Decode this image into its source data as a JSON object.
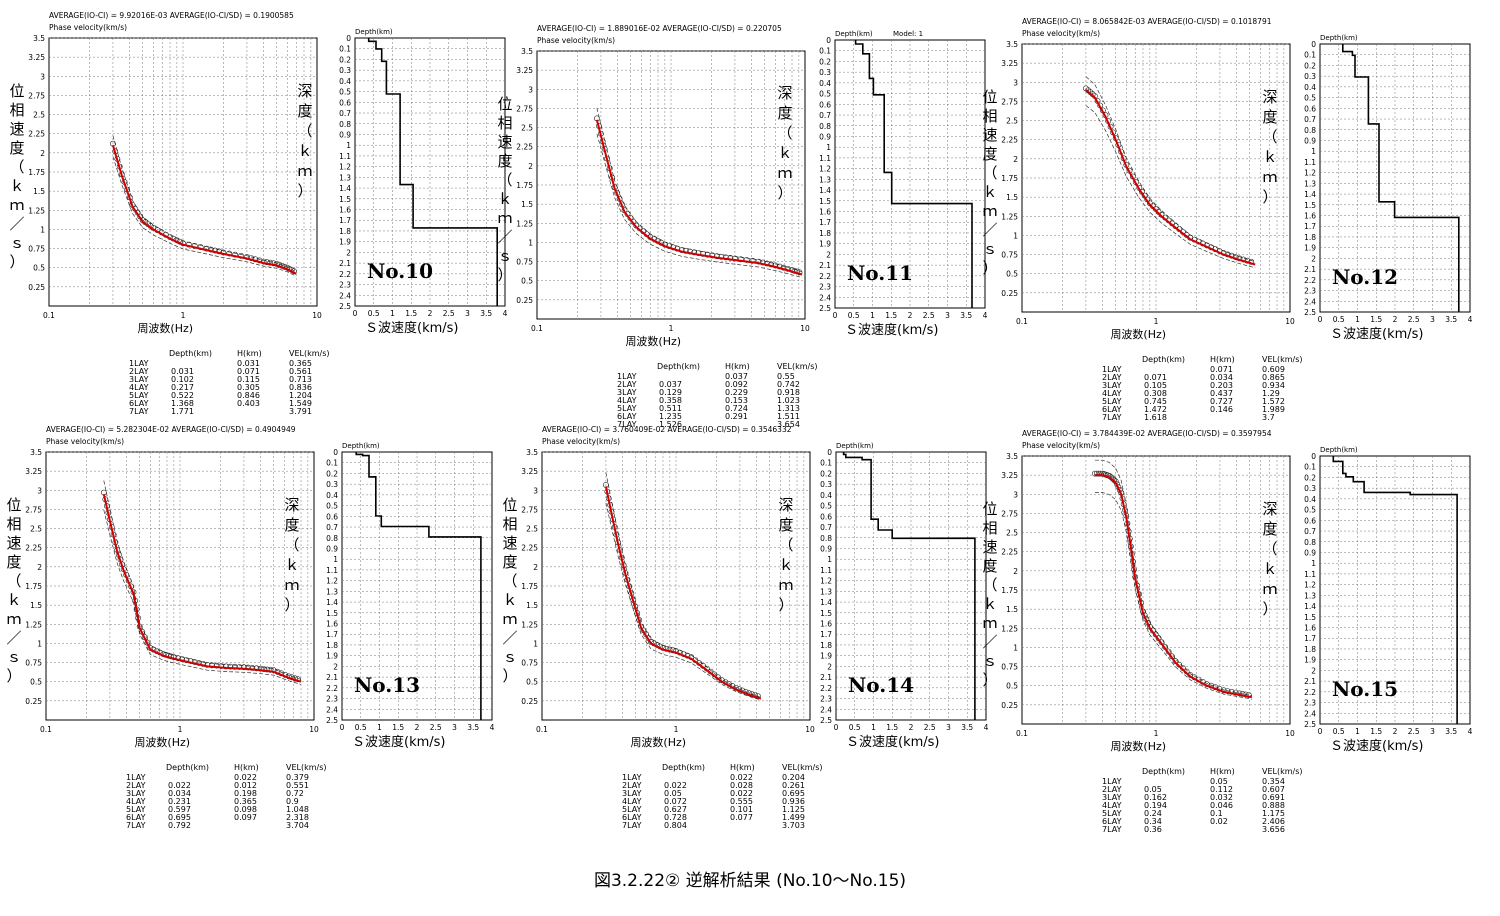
{
  "caption": "図3.2.22② 逆解析結果 (No.10〜No.15)",
  "labels": {
    "phase_velocity": "Phase velocity(km/s)",
    "depth": "Depth(km)",
    "freq_axis": "周波数(Hz)",
    "vs_axis": "Ｓ波速度(km/s)",
    "vel_axis_chars": [
      "位",
      "相",
      "速",
      "度",
      "（",
      "ｋ",
      "ｍ",
      "／",
      "ｓ",
      "）"
    ],
    "depth_axis_chars": [
      "深",
      "度",
      "（",
      "ｋ",
      "ｍ",
      "）"
    ],
    "table_header": {
      "depth": "Depth(km)",
      "h": "H(km)",
      "vel": "VEL(km/s)"
    },
    "layer_labels": [
      "1LAY",
      "2LAY",
      "3LAY",
      "4LAY",
      "5LAY",
      "6LAY",
      "7LAY"
    ]
  },
  "chart_data": [
    {
      "type": "line",
      "site": "No.10",
      "header": "AVERAGE(IO-CI) = 9.92016E-03     AVERAGE(IO-CI/SD) = 0.1900585",
      "phase_yticks": [
        "3.5",
        "3.25",
        "3",
        "2.75",
        "2.5",
        "2.25",
        "2",
        "1.75",
        "1.5",
        "1.25",
        "1",
        "0.75",
        "0.5",
        "0.25"
      ],
      "phase_xticks": [
        "0.1",
        "1",
        "10"
      ],
      "depth_yticks": [
        "0",
        "0.1",
        "0.2",
        "0.3",
        "0.4",
        "0.5",
        "0.6",
        "0.7",
        "0.8",
        "0.9",
        "1",
        "1.1",
        "1.2",
        "1.3",
        "1.4",
        "1.5",
        "1.6",
        "1.7",
        "1.8",
        "1.9",
        "2",
        "2.1",
        "2.2",
        "2.3",
        "2.4",
        "2.5"
      ],
      "vs_xticks": [
        "0",
        "0.5",
        "1",
        "1.5",
        "2",
        "2.5",
        "3",
        "3.5",
        "4"
      ],
      "dispersion": {
        "x": [
          0.3,
          0.35,
          0.42,
          0.5,
          0.6,
          0.8,
          1,
          1.5,
          2,
          3,
          4,
          5,
          6,
          7
        ],
        "y": [
          2.1,
          1.7,
          1.3,
          1.1,
          1.0,
          0.88,
          0.8,
          0.73,
          0.68,
          0.62,
          0.56,
          0.53,
          0.48,
          0.42
        ]
      },
      "table": [
        {
          "depth": "",
          "h": "0.031",
          "vel": "0.365"
        },
        {
          "depth": "0.031",
          "h": "0.071",
          "vel": "0.561"
        },
        {
          "depth": "0.102",
          "h": "0.115",
          "vel": "0.713"
        },
        {
          "depth": "0.217",
          "h": "0.305",
          "vel": "0.836"
        },
        {
          "depth": "0.522",
          "h": "0.846",
          "vel": "1.204"
        },
        {
          "depth": "1.368",
          "h": "0.403",
          "vel": "1.549"
        },
        {
          "depth": "1.771",
          "h": "",
          "vel": "3.791"
        }
      ]
    },
    {
      "type": "line",
      "site": "No.11",
      "header": "AVERAGE(IO-CI) = 1.889016E-02     AVERAGE(IO-CI/SD) = 0.220705",
      "model": "Model: 1",
      "phase_yticks": [
        "3.5",
        "3.25",
        "3",
        "2.75",
        "2.5",
        "2.25",
        "2",
        "1.75",
        "1.5",
        "1.25",
        "1",
        "0.75",
        "0.5",
        "0.25"
      ],
      "phase_xticks": [
        "0.1",
        "1",
        "10"
      ],
      "depth_yticks": [
        "0",
        "0.1",
        "0.2",
        "0.3",
        "0.4",
        "0.5",
        "0.6",
        "0.7",
        "0.8",
        "0.9",
        "1",
        "1.1",
        "1.2",
        "1.3",
        "1.4",
        "1.5",
        "1.6",
        "1.7",
        "1.8",
        "1.9",
        "2",
        "2.1",
        "2.2",
        "2.3",
        "2.4",
        "2.5"
      ],
      "vs_xticks": [
        "0",
        "0.5",
        "1",
        "1.5",
        "2",
        "2.5",
        "3",
        "3.5",
        "4"
      ],
      "dispersion": {
        "x": [
          0.28,
          0.32,
          0.38,
          0.45,
          0.55,
          0.7,
          0.9,
          1.2,
          1.6,
          2.2,
          3,
          4.5,
          6,
          8,
          9.5
        ],
        "y": [
          2.6,
          2.2,
          1.7,
          1.4,
          1.2,
          1.05,
          0.95,
          0.88,
          0.84,
          0.8,
          0.77,
          0.73,
          0.68,
          0.62,
          0.58
        ]
      },
      "table": [
        {
          "depth": "",
          "h": "0.037",
          "vel": "0.55"
        },
        {
          "depth": "0.037",
          "h": "0.092",
          "vel": "0.742"
        },
        {
          "depth": "0.129",
          "h": "0.229",
          "vel": "0.918"
        },
        {
          "depth": "0.358",
          "h": "0.153",
          "vel": "1.023"
        },
        {
          "depth": "0.511",
          "h": "0.724",
          "vel": "1.313"
        },
        {
          "depth": "1.235",
          "h": "0.291",
          "vel": "1.511"
        },
        {
          "depth": "1.526",
          "h": "",
          "vel": "3.654"
        }
      ]
    },
    {
      "type": "line",
      "site": "No.12",
      "header": "AVERAGE(IO-CI) = 8.065842E-03     AVERAGE(IO-CI/SD) = 0.1018791",
      "phase_yticks": [
        "3.5",
        "3.25",
        "3",
        "2.75",
        "2.5",
        "2.25",
        "2",
        "1.75",
        "1.5",
        "1.25",
        "1",
        "0.75",
        "0.5",
        "0.25"
      ],
      "phase_xticks": [
        "0.1",
        "1",
        "10"
      ],
      "depth_yticks": [
        "0",
        "0.1",
        "0.2",
        "0.3",
        "0.4",
        "0.5",
        "0.6",
        "0.7",
        "0.8",
        "0.9",
        "1",
        "1.1",
        "1.2",
        "1.3",
        "1.4",
        "1.5",
        "1.6",
        "1.7",
        "1.8",
        "1.9",
        "2",
        "2.1",
        "2.2",
        "2.3",
        "2.4",
        "2.5"
      ],
      "vs_xticks": [
        "0",
        "0.5",
        "1",
        "1.5",
        "2",
        "2.5",
        "3",
        "3.5",
        "4"
      ],
      "dispersion": {
        "x": [
          0.3,
          0.35,
          0.42,
          0.5,
          0.6,
          0.75,
          0.9,
          1.1,
          1.4,
          1.8,
          2.4,
          3.2,
          4.2,
          5.5
        ],
        "y": [
          2.9,
          2.8,
          2.55,
          2.25,
          1.9,
          1.6,
          1.4,
          1.25,
          1.1,
          0.95,
          0.85,
          0.75,
          0.68,
          0.62
        ]
      },
      "table": [
        {
          "depth": "",
          "h": "0.071",
          "vel": "0.609"
        },
        {
          "depth": "0.071",
          "h": "0.034",
          "vel": "0.865"
        },
        {
          "depth": "0.105",
          "h": "0.203",
          "vel": "0.934"
        },
        {
          "depth": "0.308",
          "h": "0.437",
          "vel": "1.29"
        },
        {
          "depth": "0.745",
          "h": "0.727",
          "vel": "1.572"
        },
        {
          "depth": "1.472",
          "h": "0.146",
          "vel": "1.989"
        },
        {
          "depth": "1.618",
          "h": "",
          "vel": "3.7"
        }
      ]
    },
    {
      "type": "line",
      "site": "No.13",
      "header": "AVERAGE(IO-CI) = 5.282304E-02     AVERAGE(IO-CI/SD) = 0.4904949",
      "phase_yticks": [
        "3.5",
        "3.25",
        "3",
        "2.75",
        "2.5",
        "2.25",
        "2",
        "1.75",
        "1.5",
        "1.25",
        "1",
        "0.75",
        "0.5",
        "0.25"
      ],
      "phase_xticks": [
        "0.1",
        "1",
        "10"
      ],
      "depth_yticks": [
        "0",
        "0.1",
        "0.2",
        "0.3",
        "0.4",
        "0.5",
        "0.6",
        "0.7",
        "0.8",
        "0.9",
        "1",
        "1.1",
        "1.2",
        "1.3",
        "1.4",
        "1.5",
        "1.6",
        "1.7",
        "1.8",
        "1.9",
        "2",
        "2.1",
        "2.2",
        "2.3",
        "2.4",
        "2.5"
      ],
      "vs_xticks": [
        "0",
        "0.5",
        "1",
        "1.5",
        "2",
        "2.5",
        "3",
        "3.5",
        "4"
      ],
      "dispersion": {
        "x": [
          0.27,
          0.3,
          0.34,
          0.38,
          0.45,
          0.5,
          0.6,
          0.75,
          0.9,
          1.2,
          1.6,
          2.2,
          3,
          4,
          5,
          6.5,
          8
        ],
        "y": [
          2.95,
          2.6,
          2.2,
          1.95,
          1.65,
          1.2,
          0.92,
          0.84,
          0.8,
          0.75,
          0.7,
          0.68,
          0.67,
          0.65,
          0.63,
          0.55,
          0.5
        ]
      },
      "table": [
        {
          "depth": "",
          "h": "0.022",
          "vel": "0.379"
        },
        {
          "depth": "0.022",
          "h": "0.012",
          "vel": "0.551"
        },
        {
          "depth": "0.034",
          "h": "0.198",
          "vel": "0.72"
        },
        {
          "depth": "0.231",
          "h": "0.365",
          "vel": "0.9"
        },
        {
          "depth": "0.597",
          "h": "0.098",
          "vel": "1.048"
        },
        {
          "depth": "0.695",
          "h": "0.097",
          "vel": "2.318"
        },
        {
          "depth": "0.792",
          "h": "",
          "vel": "3.704"
        }
      ]
    },
    {
      "type": "line",
      "site": "No.14",
      "header": "AVERAGE(IO-CI) = 3.760409E-02     AVERAGE(IO-CI/SD) = 0.3546332",
      "phase_yticks": [
        "3.5",
        "3.25",
        "3",
        "2.75",
        "2.5",
        "2.25",
        "2",
        "1.75",
        "1.5",
        "1.25",
        "1",
        "0.75",
        "0.5",
        "0.25"
      ],
      "phase_xticks": [
        "0.1",
        "1",
        "10"
      ],
      "depth_yticks": [
        "0",
        "0.1",
        "0.2",
        "0.3",
        "0.4",
        "0.5",
        "0.6",
        "0.7",
        "0.8",
        "0.9",
        "1",
        "1.1",
        "1.2",
        "1.3",
        "1.4",
        "1.5",
        "1.6",
        "1.7",
        "1.8",
        "1.9",
        "2",
        "2.1",
        "2.2",
        "2.3",
        "2.4",
        "2.5"
      ],
      "vs_xticks": [
        "0",
        "0.5",
        "1",
        "1.5",
        "2",
        "2.5",
        "3",
        "3.5",
        "4"
      ],
      "dispersion": {
        "x": [
          0.3,
          0.33,
          0.37,
          0.42,
          0.48,
          0.55,
          0.65,
          0.8,
          1,
          1.3,
          1.7,
          2.2,
          2.8,
          3.5,
          4.3
        ],
        "y": [
          3.05,
          2.7,
          2.3,
          1.9,
          1.55,
          1.2,
          1.0,
          0.92,
          0.88,
          0.8,
          0.65,
          0.5,
          0.4,
          0.33,
          0.28
        ]
      },
      "table": [
        {
          "depth": "",
          "h": "0.022",
          "vel": "0.204"
        },
        {
          "depth": "0.022",
          "h": "0.028",
          "vel": "0.261"
        },
        {
          "depth": "0.05",
          "h": "0.022",
          "vel": "0.695"
        },
        {
          "depth": "0.072",
          "h": "0.555",
          "vel": "0.936"
        },
        {
          "depth": "0.627",
          "h": "0.101",
          "vel": "1.125"
        },
        {
          "depth": "0.728",
          "h": "0.077",
          "vel": "1.499"
        },
        {
          "depth": "0.804",
          "h": "",
          "vel": "3.703"
        }
      ]
    },
    {
      "type": "line",
      "site": "No.15",
      "header": "AVERAGE(IO-CI) = 3.784439E-02     AVERAGE(IO-CI/SD) = 0.3597954",
      "phase_yticks": [
        "3.5",
        "3.25",
        "3",
        "2.75",
        "2.5",
        "2.25",
        "2",
        "1.75",
        "1.5",
        "1.25",
        "1",
        "0.75",
        "0.5",
        "0.25"
      ],
      "phase_xticks": [
        "0.1",
        "1",
        "10"
      ],
      "depth_yticks": [
        "0",
        "0.1",
        "0.2",
        "0.3",
        "0.4",
        "0.5",
        "0.6",
        "0.7",
        "0.8",
        "0.9",
        "1",
        "1.1",
        "1.2",
        "1.3",
        "1.4",
        "1.5",
        "1.6",
        "1.7",
        "1.8",
        "1.9",
        "2",
        "2.1",
        "2.2",
        "2.3",
        "2.4",
        "2.5"
      ],
      "vs_xticks": [
        "0",
        "0.5",
        "1",
        "1.5",
        "2",
        "2.5",
        "3",
        "3.5",
        "4"
      ],
      "dispersion": {
        "x": [
          0.35,
          0.4,
          0.45,
          0.5,
          0.55,
          0.6,
          0.65,
          0.7,
          0.8,
          0.9,
          1.1,
          1.4,
          1.8,
          2.4,
          3.2,
          4.2,
          5.2
        ],
        "y": [
          3.25,
          3.25,
          3.22,
          3.15,
          3.0,
          2.7,
          2.3,
          1.9,
          1.45,
          1.25,
          1.05,
          0.8,
          0.62,
          0.5,
          0.42,
          0.38,
          0.35
        ]
      },
      "table": [
        {
          "depth": "",
          "h": "0.05",
          "vel": "0.354"
        },
        {
          "depth": "0.05",
          "h": "0.112",
          "vel": "0.607"
        },
        {
          "depth": "0.162",
          "h": "0.032",
          "vel": "0.691"
        },
        {
          "depth": "0.194",
          "h": "0.046",
          "vel": "0.888"
        },
        {
          "depth": "0.24",
          "h": "0.1",
          "vel": "1.175"
        },
        {
          "depth": "0.34",
          "h": "0.02",
          "vel": "2.406"
        },
        {
          "depth": "0.36",
          "h": "",
          "vel": "3.656"
        }
      ]
    }
  ]
}
